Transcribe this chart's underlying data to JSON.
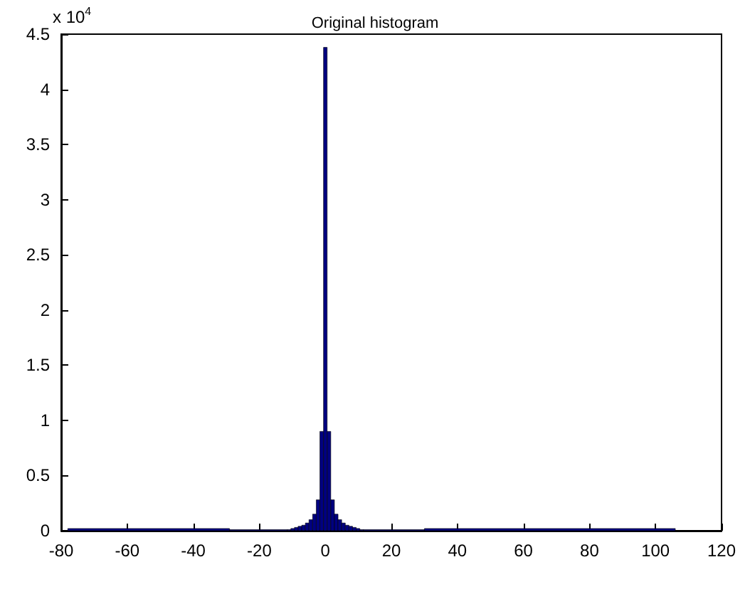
{
  "chart_data": {
    "type": "histogram",
    "title": "Original histogram",
    "annotations": [
      "x 10$^{4}$"
    ],
    "bins": [
      -78,
      -29,
      -11.55,
      -10.45,
      -9.35,
      -8.25,
      -7.15,
      -6.05,
      -4.95,
      -3.85,
      -2.75,
      -1.65,
      -0.55,
      0.55,
      1.65,
      2.75,
      3.85,
      4.95,
      6.05,
      7.15,
      8.25,
      9.35,
      10.45,
      11.55,
      30,
      106
    ],
    "values": [
      0.02,
      0.01,
      0.01,
      0.02,
      0.03,
      0.04,
      0.05,
      0.07,
      0.1,
      0.15,
      0.28,
      0.9,
      4.38,
      0.9,
      0.28,
      0.15,
      0.1,
      0.07,
      0.05,
      0.04,
      0.03,
      0.02,
      0.01,
      0.01,
      0.02
    ],
    "color": "#000080",
    "xlim": [
      -80,
      120
    ],
    "xticks": [
      -80,
      -60,
      -40,
      -20,
      0,
      20,
      40,
      60,
      80,
      100,
      120
    ],
    "ylim": [
      0,
      4.5
    ],
    "yticks": [
      0,
      0.5,
      1,
      1.5,
      2,
      2.5,
      3,
      3.5,
      4,
      4.5
    ],
    "grid": false
  }
}
